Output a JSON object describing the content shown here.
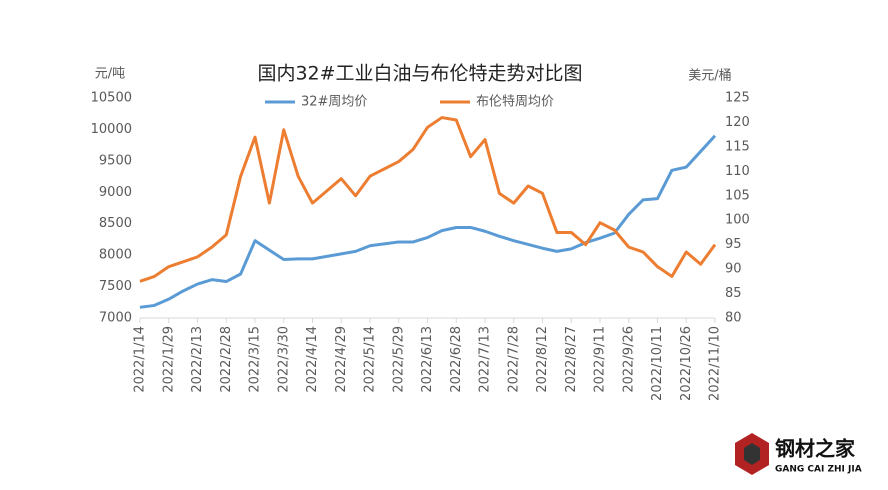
{
  "chart_data": {
    "type": "line",
    "title": "国内32#工业白油与布伦特走势对比图",
    "y_label": "元/吨",
    "y2_label": "美元/桶",
    "categories": [
      "2022/1/14",
      null,
      "2022/1/29",
      null,
      "2022/2/13",
      null,
      "2022/2/28",
      null,
      "2022/3/15",
      null,
      "2022/3/30",
      null,
      "2022/4/14",
      null,
      "2022/4/29",
      null,
      "2022/5/14",
      null,
      "2022/5/29",
      null,
      "2022/6/13",
      null,
      "2022/6/28",
      null,
      "2022/7/13",
      null,
      "2022/7/28",
      null,
      "2022/8/12",
      null,
      "2022/8/27",
      null,
      "2022/9/11",
      null,
      "2022/9/26",
      null,
      "2022/10/11",
      null,
      "2022/10/26",
      null,
      "2022/11/10"
    ],
    "series": [
      {
        "name": "32#周均价",
        "color": "#5b9bd5",
        "values": [
          7170,
          7200,
          7300,
          7430,
          7540,
          7610,
          7580,
          7700,
          8230,
          8080,
          7930,
          7940,
          7940,
          7980,
          8020,
          8060,
          8150,
          8180,
          8210,
          8210,
          8280,
          8390,
          8440,
          8440,
          8380,
          8300,
          8230,
          8170,
          8110,
          8060,
          8100,
          8200,
          8270,
          8350,
          8650,
          8880,
          8900,
          9350,
          9400,
          9650,
          9900
        ]
      },
      {
        "name": "布伦特周均价",
        "color": "#ed7d31",
        "axis": "y2",
        "values": [
          87.5,
          88.5,
          90.5,
          91.5,
          92.5,
          94.5,
          97,
          109,
          117,
          103.5,
          118.5,
          109,
          103.5,
          106,
          108.5,
          105,
          109,
          110.5,
          112,
          114.5,
          119,
          121,
          120.5,
          113,
          116.5,
          105.5,
          103.5,
          107,
          105.5,
          97.5,
          97.5,
          95,
          99.5,
          98,
          94.5,
          93.5,
          90.5,
          88.5,
          93.5,
          91,
          95
        ]
      }
    ],
    "ylim": [
      7000,
      10500
    ],
    "yticks": [
      7000,
      7500,
      8000,
      8500,
      9000,
      9500,
      10000,
      10500
    ],
    "y2lim": [
      80,
      125
    ],
    "y2ticks": [
      80,
      85,
      90,
      95,
      100,
      105,
      110,
      115,
      120,
      125
    ],
    "grid": false,
    "legend": "top"
  },
  "watermark": {
    "name": "钢材之家",
    "pinyin": "GANG CAI ZHI JIA"
  }
}
